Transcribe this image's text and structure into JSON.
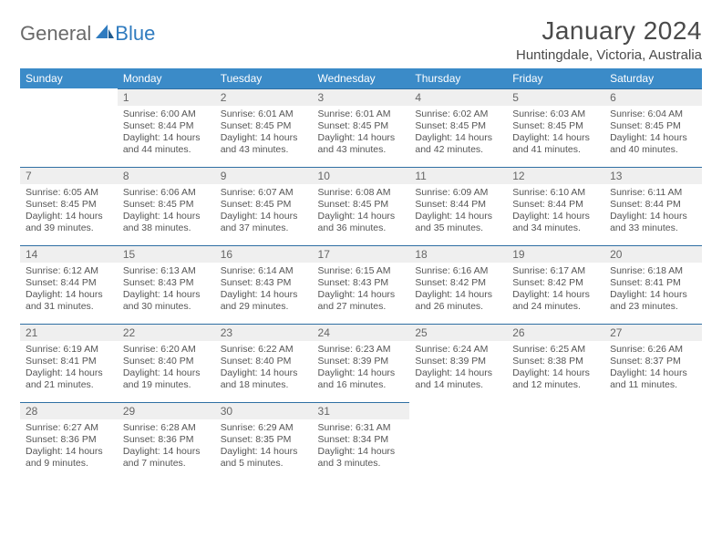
{
  "brand": {
    "word1": "General",
    "word2": "Blue",
    "color1": "#6a6a6a",
    "color2": "#2f7bbf"
  },
  "title": "January 2024",
  "location": "Huntingdale, Victoria, Australia",
  "colors": {
    "header_bg": "#3b8bc8",
    "header_text": "#ffffff",
    "daynum_bg": "#efefef",
    "daynum_border": "#2f6fa3",
    "body_text": "#555555",
    "page_bg": "#ffffff"
  },
  "fonts": {
    "title_size": 28,
    "location_size": 15,
    "dayheader_size": 12,
    "body_size": 10.5
  },
  "day_headers": [
    "Sunday",
    "Monday",
    "Tuesday",
    "Wednesday",
    "Thursday",
    "Friday",
    "Saturday"
  ],
  "start_offset": 1,
  "days": [
    {
      "n": 1,
      "sunrise": "6:00 AM",
      "sunset": "8:44 PM",
      "daylight": "14 hours and 44 minutes."
    },
    {
      "n": 2,
      "sunrise": "6:01 AM",
      "sunset": "8:45 PM",
      "daylight": "14 hours and 43 minutes."
    },
    {
      "n": 3,
      "sunrise": "6:01 AM",
      "sunset": "8:45 PM",
      "daylight": "14 hours and 43 minutes."
    },
    {
      "n": 4,
      "sunrise": "6:02 AM",
      "sunset": "8:45 PM",
      "daylight": "14 hours and 42 minutes."
    },
    {
      "n": 5,
      "sunrise": "6:03 AM",
      "sunset": "8:45 PM",
      "daylight": "14 hours and 41 minutes."
    },
    {
      "n": 6,
      "sunrise": "6:04 AM",
      "sunset": "8:45 PM",
      "daylight": "14 hours and 40 minutes."
    },
    {
      "n": 7,
      "sunrise": "6:05 AM",
      "sunset": "8:45 PM",
      "daylight": "14 hours and 39 minutes."
    },
    {
      "n": 8,
      "sunrise": "6:06 AM",
      "sunset": "8:45 PM",
      "daylight": "14 hours and 38 minutes."
    },
    {
      "n": 9,
      "sunrise": "6:07 AM",
      "sunset": "8:45 PM",
      "daylight": "14 hours and 37 minutes."
    },
    {
      "n": 10,
      "sunrise": "6:08 AM",
      "sunset": "8:45 PM",
      "daylight": "14 hours and 36 minutes."
    },
    {
      "n": 11,
      "sunrise": "6:09 AM",
      "sunset": "8:44 PM",
      "daylight": "14 hours and 35 minutes."
    },
    {
      "n": 12,
      "sunrise": "6:10 AM",
      "sunset": "8:44 PM",
      "daylight": "14 hours and 34 minutes."
    },
    {
      "n": 13,
      "sunrise": "6:11 AM",
      "sunset": "8:44 PM",
      "daylight": "14 hours and 33 minutes."
    },
    {
      "n": 14,
      "sunrise": "6:12 AM",
      "sunset": "8:44 PM",
      "daylight": "14 hours and 31 minutes."
    },
    {
      "n": 15,
      "sunrise": "6:13 AM",
      "sunset": "8:43 PM",
      "daylight": "14 hours and 30 minutes."
    },
    {
      "n": 16,
      "sunrise": "6:14 AM",
      "sunset": "8:43 PM",
      "daylight": "14 hours and 29 minutes."
    },
    {
      "n": 17,
      "sunrise": "6:15 AM",
      "sunset": "8:43 PM",
      "daylight": "14 hours and 27 minutes."
    },
    {
      "n": 18,
      "sunrise": "6:16 AM",
      "sunset": "8:42 PM",
      "daylight": "14 hours and 26 minutes."
    },
    {
      "n": 19,
      "sunrise": "6:17 AM",
      "sunset": "8:42 PM",
      "daylight": "14 hours and 24 minutes."
    },
    {
      "n": 20,
      "sunrise": "6:18 AM",
      "sunset": "8:41 PM",
      "daylight": "14 hours and 23 minutes."
    },
    {
      "n": 21,
      "sunrise": "6:19 AM",
      "sunset": "8:41 PM",
      "daylight": "14 hours and 21 minutes."
    },
    {
      "n": 22,
      "sunrise": "6:20 AM",
      "sunset": "8:40 PM",
      "daylight": "14 hours and 19 minutes."
    },
    {
      "n": 23,
      "sunrise": "6:22 AM",
      "sunset": "8:40 PM",
      "daylight": "14 hours and 18 minutes."
    },
    {
      "n": 24,
      "sunrise": "6:23 AM",
      "sunset": "8:39 PM",
      "daylight": "14 hours and 16 minutes."
    },
    {
      "n": 25,
      "sunrise": "6:24 AM",
      "sunset": "8:39 PM",
      "daylight": "14 hours and 14 minutes."
    },
    {
      "n": 26,
      "sunrise": "6:25 AM",
      "sunset": "8:38 PM",
      "daylight": "14 hours and 12 minutes."
    },
    {
      "n": 27,
      "sunrise": "6:26 AM",
      "sunset": "8:37 PM",
      "daylight": "14 hours and 11 minutes."
    },
    {
      "n": 28,
      "sunrise": "6:27 AM",
      "sunset": "8:36 PM",
      "daylight": "14 hours and 9 minutes."
    },
    {
      "n": 29,
      "sunrise": "6:28 AM",
      "sunset": "8:36 PM",
      "daylight": "14 hours and 7 minutes."
    },
    {
      "n": 30,
      "sunrise": "6:29 AM",
      "sunset": "8:35 PM",
      "daylight": "14 hours and 5 minutes."
    },
    {
      "n": 31,
      "sunrise": "6:31 AM",
      "sunset": "8:34 PM",
      "daylight": "14 hours and 3 minutes."
    }
  ],
  "labels": {
    "sunrise": "Sunrise:",
    "sunset": "Sunset:",
    "daylight": "Daylight:"
  }
}
